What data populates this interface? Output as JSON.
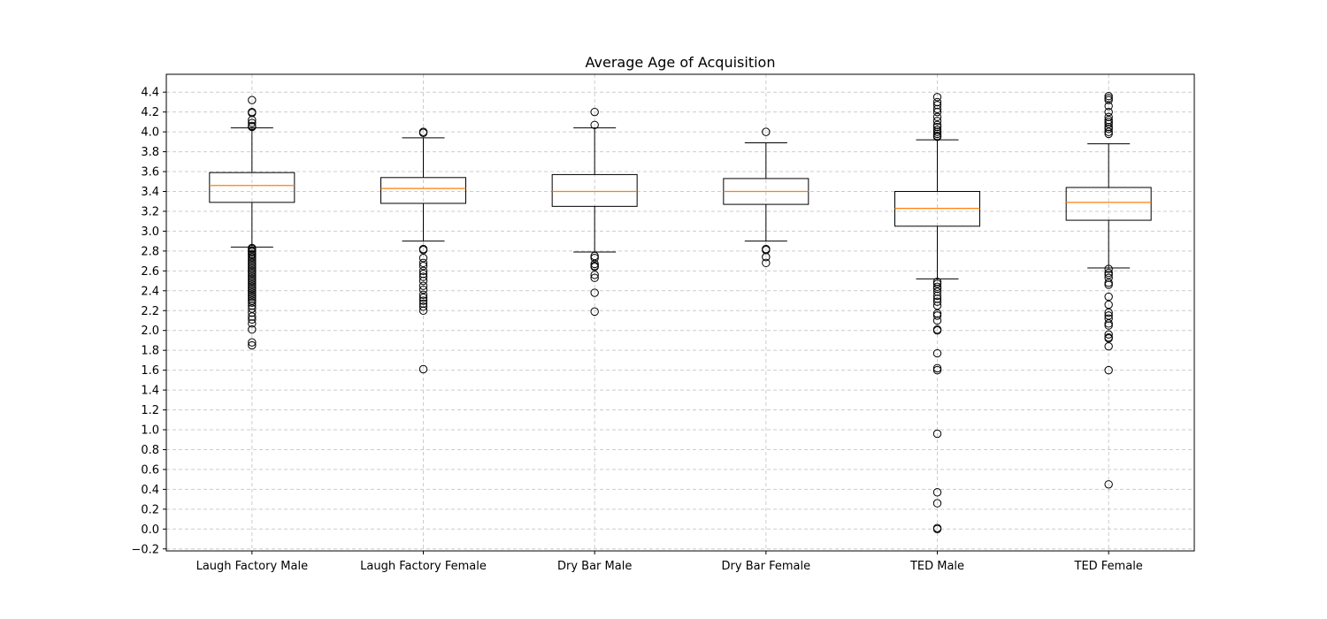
{
  "chart_data": {
    "type": "box",
    "title": "Average Age of Acquisition",
    "xlabel": "",
    "ylabel": "",
    "ylim": [
      -0.22,
      4.58
    ],
    "yticks": [
      -0.2,
      0.0,
      0.2,
      0.4,
      0.6,
      0.8,
      1.0,
      1.2,
      1.4,
      1.6,
      1.8,
      2.0,
      2.2,
      2.4,
      2.6,
      2.8,
      3.0,
      3.2,
      3.4,
      3.6,
      3.8,
      4.0,
      4.2,
      4.4
    ],
    "ytick_labels": [
      "−0.2",
      "0.0",
      "0.2",
      "0.4",
      "0.6",
      "0.8",
      "1.0",
      "1.2",
      "1.4",
      "1.6",
      "1.8",
      "2.0",
      "2.2",
      "2.4",
      "2.6",
      "2.8",
      "3.0",
      "3.2",
      "3.4",
      "3.6",
      "3.8",
      "4.0",
      "4.2",
      "4.4"
    ],
    "grid": true,
    "colors": {
      "box": "#000000",
      "median": "#ff7f0e",
      "grid": "#cccccc"
    },
    "categories": [
      "Laugh Factory Male",
      "Laugh Factory Female",
      "Dry Bar Male",
      "Dry Bar Female",
      "TED Male",
      "TED Female"
    ],
    "boxes": [
      {
        "name": "Laugh Factory Male",
        "whisker_low": 2.84,
        "q1": 3.29,
        "median": 3.46,
        "q3": 3.59,
        "whisker_high": 4.04,
        "outliers": [
          4.32,
          4.2,
          4.19,
          4.12,
          4.09,
          4.06,
          4.05,
          2.83,
          2.82,
          2.8,
          2.79,
          2.77,
          2.76,
          2.74,
          2.72,
          2.7,
          2.68,
          2.66,
          2.64,
          2.62,
          2.6,
          2.58,
          2.56,
          2.54,
          2.52,
          2.5,
          2.48,
          2.46,
          2.44,
          2.42,
          2.4,
          2.38,
          2.36,
          2.34,
          2.32,
          2.3,
          2.28,
          2.25,
          2.22,
          2.18,
          2.14,
          2.11,
          2.07,
          2.01,
          1.88,
          1.85
        ]
      },
      {
        "name": "Laugh Factory Female",
        "whisker_low": 2.9,
        "q1": 3.28,
        "median": 3.43,
        "q3": 3.54,
        "whisker_high": 3.94,
        "outliers": [
          4.0,
          3.99,
          2.82,
          2.81,
          2.73,
          2.68,
          2.65,
          2.6,
          2.57,
          2.54,
          2.5,
          2.45,
          2.41,
          2.36,
          2.33,
          2.3,
          2.27,
          2.24,
          2.2,
          1.61
        ]
      },
      {
        "name": "Dry Bar Male",
        "whisker_low": 2.79,
        "q1": 3.25,
        "median": 3.4,
        "q3": 3.57,
        "whisker_high": 4.04,
        "outliers": [
          4.2,
          4.07,
          2.75,
          2.73,
          2.67,
          2.65,
          2.64,
          2.56,
          2.53,
          2.38,
          2.19
        ]
      },
      {
        "name": "Dry Bar Female",
        "whisker_low": 2.9,
        "q1": 3.27,
        "median": 3.4,
        "q3": 3.53,
        "whisker_high": 3.89,
        "outliers": [
          4.0,
          2.82,
          2.81,
          2.74,
          2.68
        ]
      },
      {
        "name": "TED Male",
        "whisker_low": 2.52,
        "q1": 3.05,
        "median": 3.23,
        "q3": 3.4,
        "whisker_high": 3.92,
        "outliers": [
          4.35,
          4.3,
          4.27,
          4.23,
          4.2,
          4.15,
          4.11,
          4.07,
          4.05,
          4.02,
          4.0,
          3.98,
          3.96,
          3.95,
          2.49,
          2.47,
          2.44,
          2.42,
          2.39,
          2.35,
          2.32,
          2.29,
          2.25,
          2.17,
          2.15,
          2.1,
          2.01,
          2.0,
          1.77,
          1.62,
          1.6,
          0.96,
          0.37,
          0.26,
          0.01,
          0.0
        ]
      },
      {
        "name": "TED Female",
        "whisker_low": 2.63,
        "q1": 3.11,
        "median": 3.29,
        "q3": 3.44,
        "whisker_high": 3.88,
        "outliers": [
          4.36,
          4.34,
          4.32,
          4.26,
          4.2,
          4.15,
          4.12,
          4.1,
          4.08,
          4.05,
          4.03,
          4.0,
          3.98,
          2.62,
          2.58,
          2.56,
          2.53,
          2.48,
          2.46,
          2.34,
          2.26,
          2.18,
          2.15,
          2.12,
          2.07,
          2.05,
          1.96,
          1.93,
          1.92,
          1.84,
          1.6,
          0.45
        ]
      }
    ]
  }
}
